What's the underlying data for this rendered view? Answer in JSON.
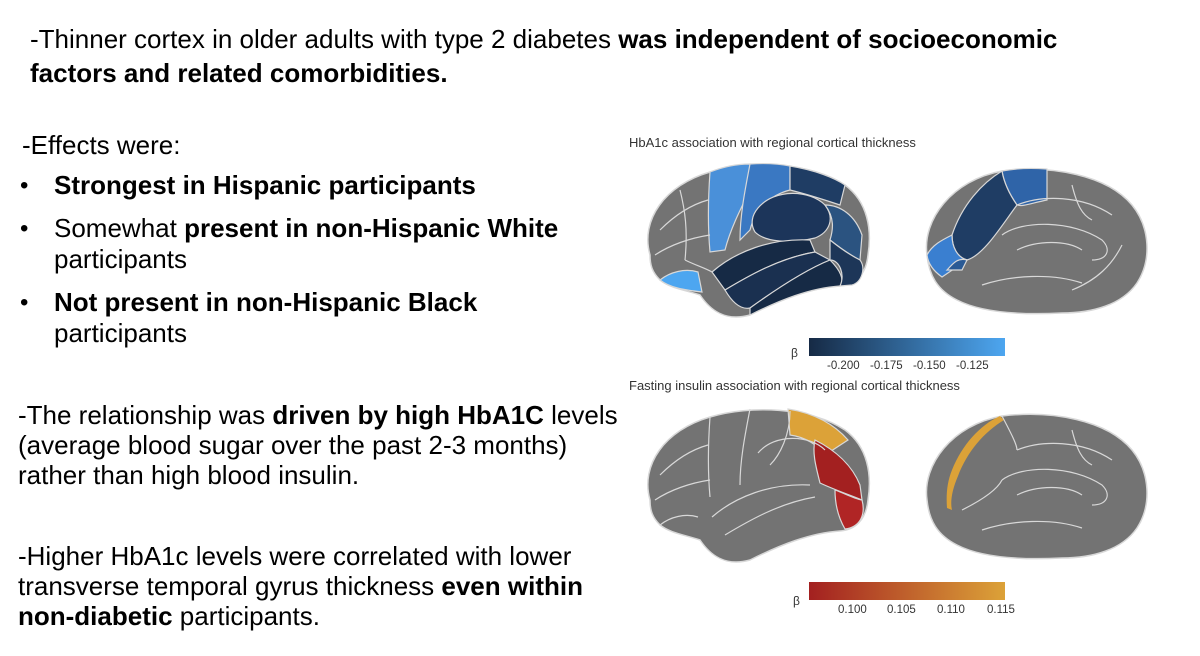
{
  "title": {
    "normal": "-Thinner cortex in older adults with type 2 diabetes ",
    "bold": "was independent of socioeconomic factors and related comorbidities."
  },
  "effects": {
    "heading": "-Effects were:",
    "bullets": [
      {
        "bold": "Strongest in Hispanic participants",
        "pre": "",
        "post": ""
      },
      {
        "pre": "Somewhat ",
        "bold": "present in non-Hispanic White",
        "post": " participants"
      },
      {
        "pre": "",
        "bold": "Not present in non-Hispanic Black",
        "post": " participants"
      }
    ]
  },
  "paragraph1": {
    "pre": "-The relationship was ",
    "bold": "driven by high HbA1C",
    "post": " levels (average blood sugar over the past 2-3 months) rather than high blood insulin."
  },
  "paragraph2": {
    "pre": "-Higher HbA1c levels were correlated with lower transverse temporal gyrus thickness ",
    "bold": "even within non-diabetic",
    "post": " participants."
  },
  "figure_top": {
    "title": "HbA1c association with regional cortical thickness",
    "colorbar_symbol": "β",
    "ticks": [
      "-0.200",
      "-0.175",
      "-0.150",
      "-0.125"
    ],
    "color_low": "#162a45",
    "color_high": "#4da6f0"
  },
  "figure_bottom": {
    "title": "Fasting insulin association with regional cortical thickness",
    "colorbar_symbol": "β",
    "ticks": [
      "0.100",
      "0.105",
      "0.110",
      "0.115"
    ],
    "color_low": "#a32020",
    "color_high": "#dca238"
  },
  "colors": {
    "brain_gray": "#737373",
    "sulcus_line": "#d8d8d8"
  }
}
